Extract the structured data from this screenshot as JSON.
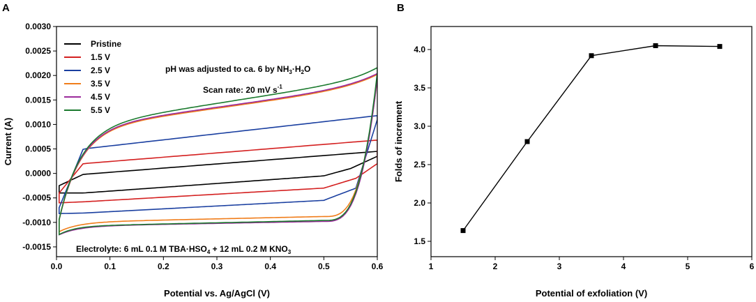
{
  "chart_data": [
    {
      "type": "line",
      "panel_label": "A",
      "title": "",
      "xlabel": "Potential vs. Ag/AgCl (V)",
      "ylabel": "Current (A)",
      "xlim": [
        0.0,
        0.6
      ],
      "ylim": [
        -0.0017,
        0.003
      ],
      "x_ticks": [
        "0.0",
        "0.1",
        "0.2",
        "0.3",
        "0.4",
        "0.5",
        "0.6"
      ],
      "y_ticks": [
        "-0.0015",
        "-0.0010",
        "-0.0005",
        "0.0000",
        "0.0005",
        "0.0010",
        "0.0015",
        "0.0020",
        "0.0025",
        "0.0030"
      ],
      "legend": {
        "position": "top-left",
        "entries": [
          "Pristine",
          "1.5 V",
          "2.5 V",
          "3.5 V",
          "4.5 V",
          "5.5 V"
        ]
      },
      "annotations": {
        "ph": {
          "text": "pH was adjusted to ca. 6 by NH",
          "sub1": "3",
          "mid": "·H",
          "sub2": "2",
          "end": "O"
        },
        "scan_rate": {
          "text": "Scan rate: 20 mV s",
          "sup": "-1"
        },
        "electrolyte": {
          "text": "Electrolyte: 6 mL 0.1 M TBA·HSO",
          "sub1": "4",
          "mid": " + 12 mL 0.2 M KNO",
          "sub2": "3"
        }
      },
      "series": [
        {
          "name": "Pristine",
          "color": "#000000",
          "kind": "linear",
          "upper": {
            "x": [
              0.005,
              0.05,
              0.6
            ],
            "y": [
              -0.00025,
              -2e-05,
              0.00045
            ]
          },
          "lower": {
            "x": [
              0.005,
              0.05,
              0.5
            ],
            "y": [
              -0.0004,
              -0.0004,
              -5e-05
            ]
          },
          "tail": {
            "x": [
              0.5,
              0.55,
              0.6
            ],
            "y": [
              -5e-05,
              0.0001,
              0.00035
            ]
          }
        },
        {
          "name": "1.5 V",
          "color": "#d42020",
          "kind": "linear",
          "upper": {
            "x": [
              0.005,
              0.05,
              0.6
            ],
            "y": [
              -0.0004,
              0.0002,
              0.00068
            ]
          },
          "lower": {
            "x": [
              0.005,
              0.05,
              0.5
            ],
            "y": [
              -0.0006,
              -0.00058,
              -0.0003
            ]
          },
          "tail": {
            "x": [
              0.5,
              0.56,
              0.6
            ],
            "y": [
              -0.0003,
              -0.0001,
              0.0002
            ]
          }
        },
        {
          "name": "2.5 V",
          "color": "#1a3fa0",
          "kind": "linear",
          "upper": {
            "x": [
              0.005,
              0.05,
              0.6
            ],
            "y": [
              -0.0007,
              0.0005,
              0.00118
            ]
          },
          "lower": {
            "x": [
              0.005,
              0.05,
              0.5
            ],
            "y": [
              -0.00082,
              -0.00081,
              -0.00055
            ]
          },
          "tail": {
            "x": [
              0.5,
              0.56,
              0.6
            ],
            "y": [
              -0.00055,
              -0.0003,
              0.0011
            ]
          }
        },
        {
          "name": "3.5 V",
          "color": "#f07d1a",
          "kind": "sat",
          "params": {
            "A": 0.00088,
            "k": 25,
            "ks": 0.0015,
            "B": 5e-06,
            "l": 0.06,
            "top": 0.00202,
            "Imin": -0.00122,
            "Lmid": -0.001,
            "Lend": -0.00088,
            "tk": 14
          }
        },
        {
          "name": "4.5 V",
          "color": "#9b2a9b",
          "kind": "sat",
          "params": {
            "A": 0.0009,
            "k": 25,
            "ks": 0.0015,
            "B": 6e-06,
            "l": 0.06,
            "top": 0.00204,
            "Imin": -0.00128,
            "Lmid": -0.00108,
            "Lend": -0.00098,
            "tk": 14
          }
        },
        {
          "name": "5.5 V",
          "color": "#1b7a2e",
          "kind": "sat",
          "params": {
            "A": 0.00092,
            "k": 25,
            "ks": 0.0017,
            "B": 5e-06,
            "l": 0.05,
            "top": 0.00216,
            "Imin": -0.00128,
            "Lmid": -0.00108,
            "Lend": -0.00096,
            "tk": 17
          }
        }
      ]
    },
    {
      "type": "line",
      "panel_label": "B",
      "title": "",
      "xlabel": "Potential of exfoliation (V)",
      "ylabel": "Folds of increment",
      "xlim": [
        1,
        6
      ],
      "ylim": [
        1.3,
        4.3
      ],
      "x_ticks": [
        "1",
        "2",
        "3",
        "4",
        "5",
        "6"
      ],
      "y_ticks": [
        "1.5",
        "2.0",
        "2.5",
        "3.0",
        "3.5",
        "4.0"
      ],
      "series": [
        {
          "name": "Folds of increment",
          "color": "#000000",
          "x": [
            1.5,
            2.5,
            3.5,
            4.5,
            5.5
          ],
          "y": [
            1.64,
            2.8,
            3.92,
            4.05,
            4.04
          ]
        }
      ]
    }
  ]
}
